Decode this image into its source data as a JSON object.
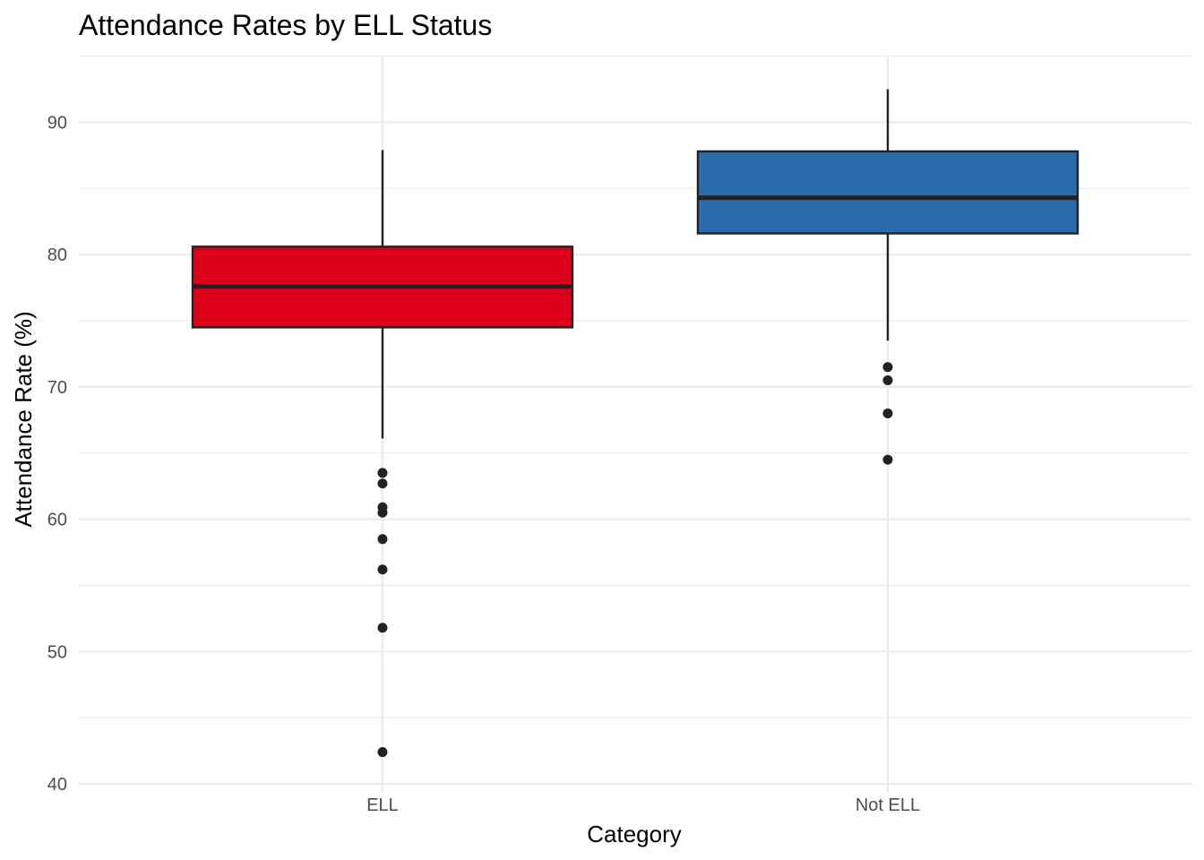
{
  "chart_data": {
    "type": "box",
    "title": "Attendance Rates by ELL Status",
    "xlabel": "Category",
    "ylabel": "Attendance Rate (%)",
    "ylim": [
      40,
      95
    ],
    "yticks": [
      40,
      50,
      60,
      70,
      80,
      90
    ],
    "grid": true,
    "legend": "none",
    "categories": [
      "ELL",
      "Not ELL"
    ],
    "series": [
      {
        "category": "ELL",
        "color": "#DC001A",
        "whisker_low": 66.1,
        "q1": 74.5,
        "median": 77.6,
        "q3": 80.6,
        "whisker_high": 87.9,
        "outliers": [
          63.5,
          62.7,
          60.9,
          60.5,
          58.5,
          56.2,
          51.8,
          42.4
        ]
      },
      {
        "category": "Not ELL",
        "color": "#2C6CAA",
        "whisker_low": 73.5,
        "q1": 81.6,
        "median": 84.3,
        "q3": 87.8,
        "whisker_high": 92.5,
        "outliers": [
          71.5,
          70.5,
          68.0,
          64.5
        ]
      }
    ]
  }
}
